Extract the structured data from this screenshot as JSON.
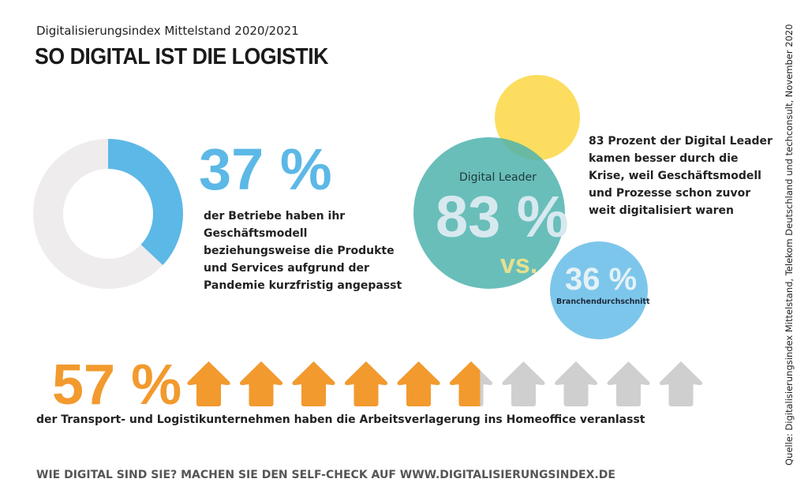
{
  "header": {
    "subtitle": "Digitalisierungsindex Mittelstand 2020/2021",
    "title": "SO DIGITAL IST DIE LOGISTIK"
  },
  "colors": {
    "blue": "#5cb8e6",
    "grey": "#eeecec",
    "teal": "#4fb3ae",
    "yellow": "#fcd94e",
    "orange": "#f29a2e",
    "house_grey": "#cfcfcf"
  },
  "stat1": {
    "value": "37 %",
    "text": "der Betriebe haben ihr Geschäftsmodell beziehungsweise die Produkte und Services aufgrund der Pandemie kurzfristig angepasst"
  },
  "stat2": {
    "leader_label": "Digital Leader",
    "leader_value": "83 %",
    "vs": "vs.",
    "avg_value": "36 %",
    "avg_label": "Branchendurchschnitt",
    "text": "83 Prozent der Digital Leader kamen besser durch die Krise, weil Geschäftsmodell und Prozesse schon zuvor weit digitalisiert waren"
  },
  "stat3": {
    "value": "57 %",
    "text": "der Transport- und Logistikunternehmen haben die Arbeitsverlagerung ins Homeoffice veranlasst"
  },
  "footer": "WIE DIGITAL SIND SIE? MACHEN SIE DEN SELF-CHECK AUF WWW.DIGITALISIERUNGSINDEX.DE",
  "source": "Quelle: Digitalisierungsindex Mittelstand, Telekom Deutschland und techconsult, November 2020",
  "chart_data": [
    {
      "type": "pie",
      "variant": "donut",
      "values": [
        37,
        63
      ],
      "colors": [
        "#5cb8e6",
        "#eeecec"
      ]
    },
    {
      "type": "venn",
      "values": [
        83,
        36
      ],
      "labels": [
        "Digital Leader",
        "Branchendurchschnitt"
      ]
    },
    {
      "type": "pictogram",
      "icon": "house-icon",
      "total_icons": 10,
      "percent": 57
    }
  ]
}
